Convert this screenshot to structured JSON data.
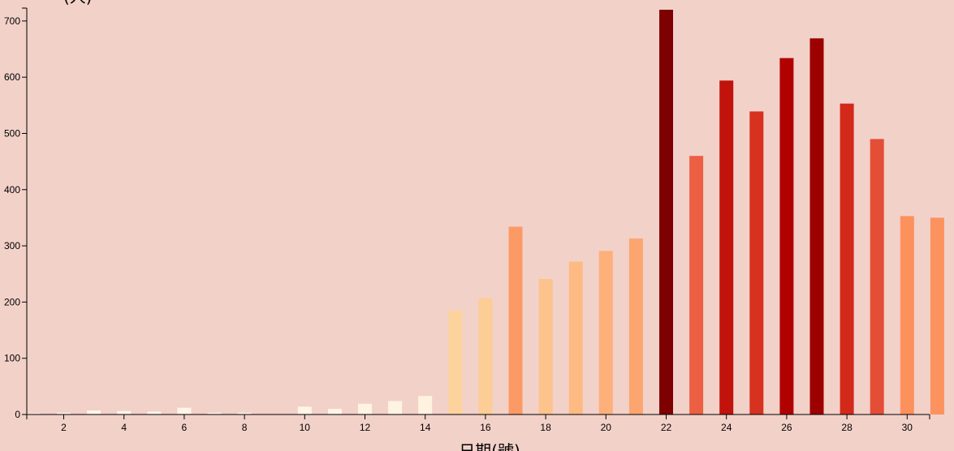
{
  "chart_data": {
    "type": "bar",
    "title": "",
    "xlabel": "日期(號)",
    "ylabel": "(人)",
    "ylim": [
      0,
      720
    ],
    "y_ticks": [
      0,
      100,
      200,
      300,
      400,
      500,
      600,
      700
    ],
    "x_ticks": [
      2,
      4,
      6,
      8,
      10,
      12,
      14,
      16,
      18,
      20,
      22,
      24,
      26,
      28,
      30
    ],
    "categories": [
      1,
      2,
      3,
      4,
      5,
      6,
      7,
      8,
      9,
      10,
      11,
      12,
      13,
      14,
      15,
      16,
      17,
      18,
      19,
      20,
      21,
      22,
      23,
      24,
      25,
      26,
      27,
      28,
      29,
      30,
      31
    ],
    "values": [
      2,
      3,
      7,
      6,
      5,
      12,
      3,
      3,
      0,
      14,
      10,
      19,
      24,
      33,
      185,
      207,
      334,
      241,
      272,
      291,
      313,
      720,
      460,
      594,
      539,
      634,
      669,
      553,
      490,
      353,
      350
    ],
    "color_scale": {
      "stops": [
        "#fff7ec",
        "#fee8c8",
        "#fdd49e",
        "#fdbb84",
        "#fc8d59",
        "#ef6548",
        "#d7301f",
        "#b30000",
        "#7f0000"
      ],
      "domain": [
        0,
        720
      ]
    },
    "grid": false,
    "legend": "none"
  }
}
